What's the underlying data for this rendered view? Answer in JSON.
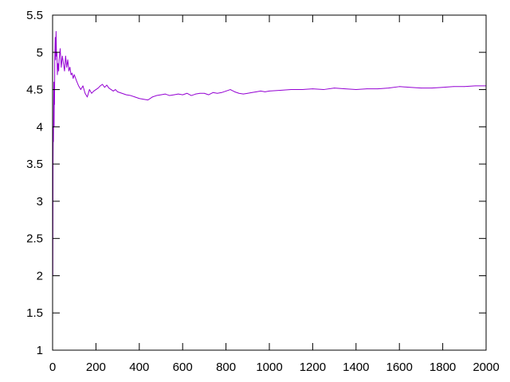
{
  "chart_data": {
    "type": "line",
    "title": "",
    "xlabel": "",
    "ylabel": "",
    "xlim": [
      0,
      2000
    ],
    "ylim": [
      1,
      5.5
    ],
    "grid": false,
    "legend": "none",
    "x_ticks": [
      {
        "value": 0,
        "label": "0"
      },
      {
        "value": 200,
        "label": "200"
      },
      {
        "value": 400,
        "label": "400"
      },
      {
        "value": 600,
        "label": "600"
      },
      {
        "value": 800,
        "label": "800"
      },
      {
        "value": 1000,
        "label": "1000"
      },
      {
        "value": 1200,
        "label": "1200"
      },
      {
        "value": 1400,
        "label": "1400"
      },
      {
        "value": 1600,
        "label": "1600"
      },
      {
        "value": 1800,
        "label": "1800"
      },
      {
        "value": 2000,
        "label": "2000"
      }
    ],
    "y_ticks": [
      {
        "value": 1,
        "label": "1"
      },
      {
        "value": 1.5,
        "label": "1.5"
      },
      {
        "value": 2,
        "label": "2"
      },
      {
        "value": 2.5,
        "label": "2.5"
      },
      {
        "value": 3,
        "label": "3"
      },
      {
        "value": 3.5,
        "label": "3.5"
      },
      {
        "value": 4,
        "label": "4"
      },
      {
        "value": 4.5,
        "label": "4.5"
      },
      {
        "value": 5,
        "label": "5"
      },
      {
        "value": 5.5,
        "label": "5.5"
      }
    ],
    "series": [
      {
        "color": "#9400d3",
        "x": [
          1,
          2,
          3,
          4,
          5,
          6,
          7,
          8,
          9,
          10,
          12,
          14,
          16,
          18,
          20,
          22,
          25,
          28,
          30,
          35,
          40,
          45,
          50,
          55,
          60,
          65,
          70,
          75,
          80,
          85,
          90,
          95,
          100,
          110,
          120,
          130,
          140,
          150,
          160,
          170,
          180,
          190,
          200,
          210,
          220,
          230,
          240,
          250,
          260,
          270,
          280,
          290,
          300,
          320,
          340,
          360,
          380,
          400,
          420,
          440,
          460,
          480,
          500,
          520,
          540,
          560,
          580,
          600,
          620,
          640,
          660,
          680,
          700,
          720,
          740,
          760,
          780,
          800,
          820,
          840,
          860,
          880,
          900,
          920,
          940,
          960,
          980,
          1000,
          1050,
          1100,
          1150,
          1200,
          1250,
          1300,
          1350,
          1400,
          1450,
          1500,
          1550,
          1600,
          1650,
          1700,
          1750,
          1800,
          1850,
          1900,
          1950,
          2000
        ],
        "values": [
          2.0,
          3.5,
          4.0,
          3.8,
          4.3,
          4.6,
          4.0,
          4.5,
          4.3,
          4.9,
          5.2,
          4.9,
          5.28,
          4.95,
          5.0,
          4.7,
          4.85,
          4.75,
          4.9,
          5.05,
          4.8,
          4.95,
          4.85,
          4.75,
          4.95,
          4.8,
          4.9,
          4.75,
          4.8,
          4.7,
          4.72,
          4.65,
          4.7,
          4.62,
          4.55,
          4.5,
          4.55,
          4.45,
          4.4,
          4.5,
          4.45,
          4.48,
          4.5,
          4.52,
          4.55,
          4.57,
          4.53,
          4.56,
          4.52,
          4.5,
          4.48,
          4.5,
          4.47,
          4.45,
          4.43,
          4.42,
          4.4,
          4.38,
          4.37,
          4.36,
          4.4,
          4.42,
          4.43,
          4.44,
          4.42,
          4.43,
          4.44,
          4.43,
          4.45,
          4.42,
          4.44,
          4.45,
          4.45,
          4.43,
          4.46,
          4.45,
          4.46,
          4.48,
          4.5,
          4.47,
          4.45,
          4.44,
          4.45,
          4.46,
          4.47,
          4.48,
          4.47,
          4.48,
          4.49,
          4.5,
          4.5,
          4.51,
          4.5,
          4.52,
          4.51,
          4.5,
          4.51,
          4.51,
          4.52,
          4.54,
          4.53,
          4.52,
          4.52,
          4.53,
          4.54,
          4.54,
          4.55,
          4.55
        ]
      }
    ]
  }
}
